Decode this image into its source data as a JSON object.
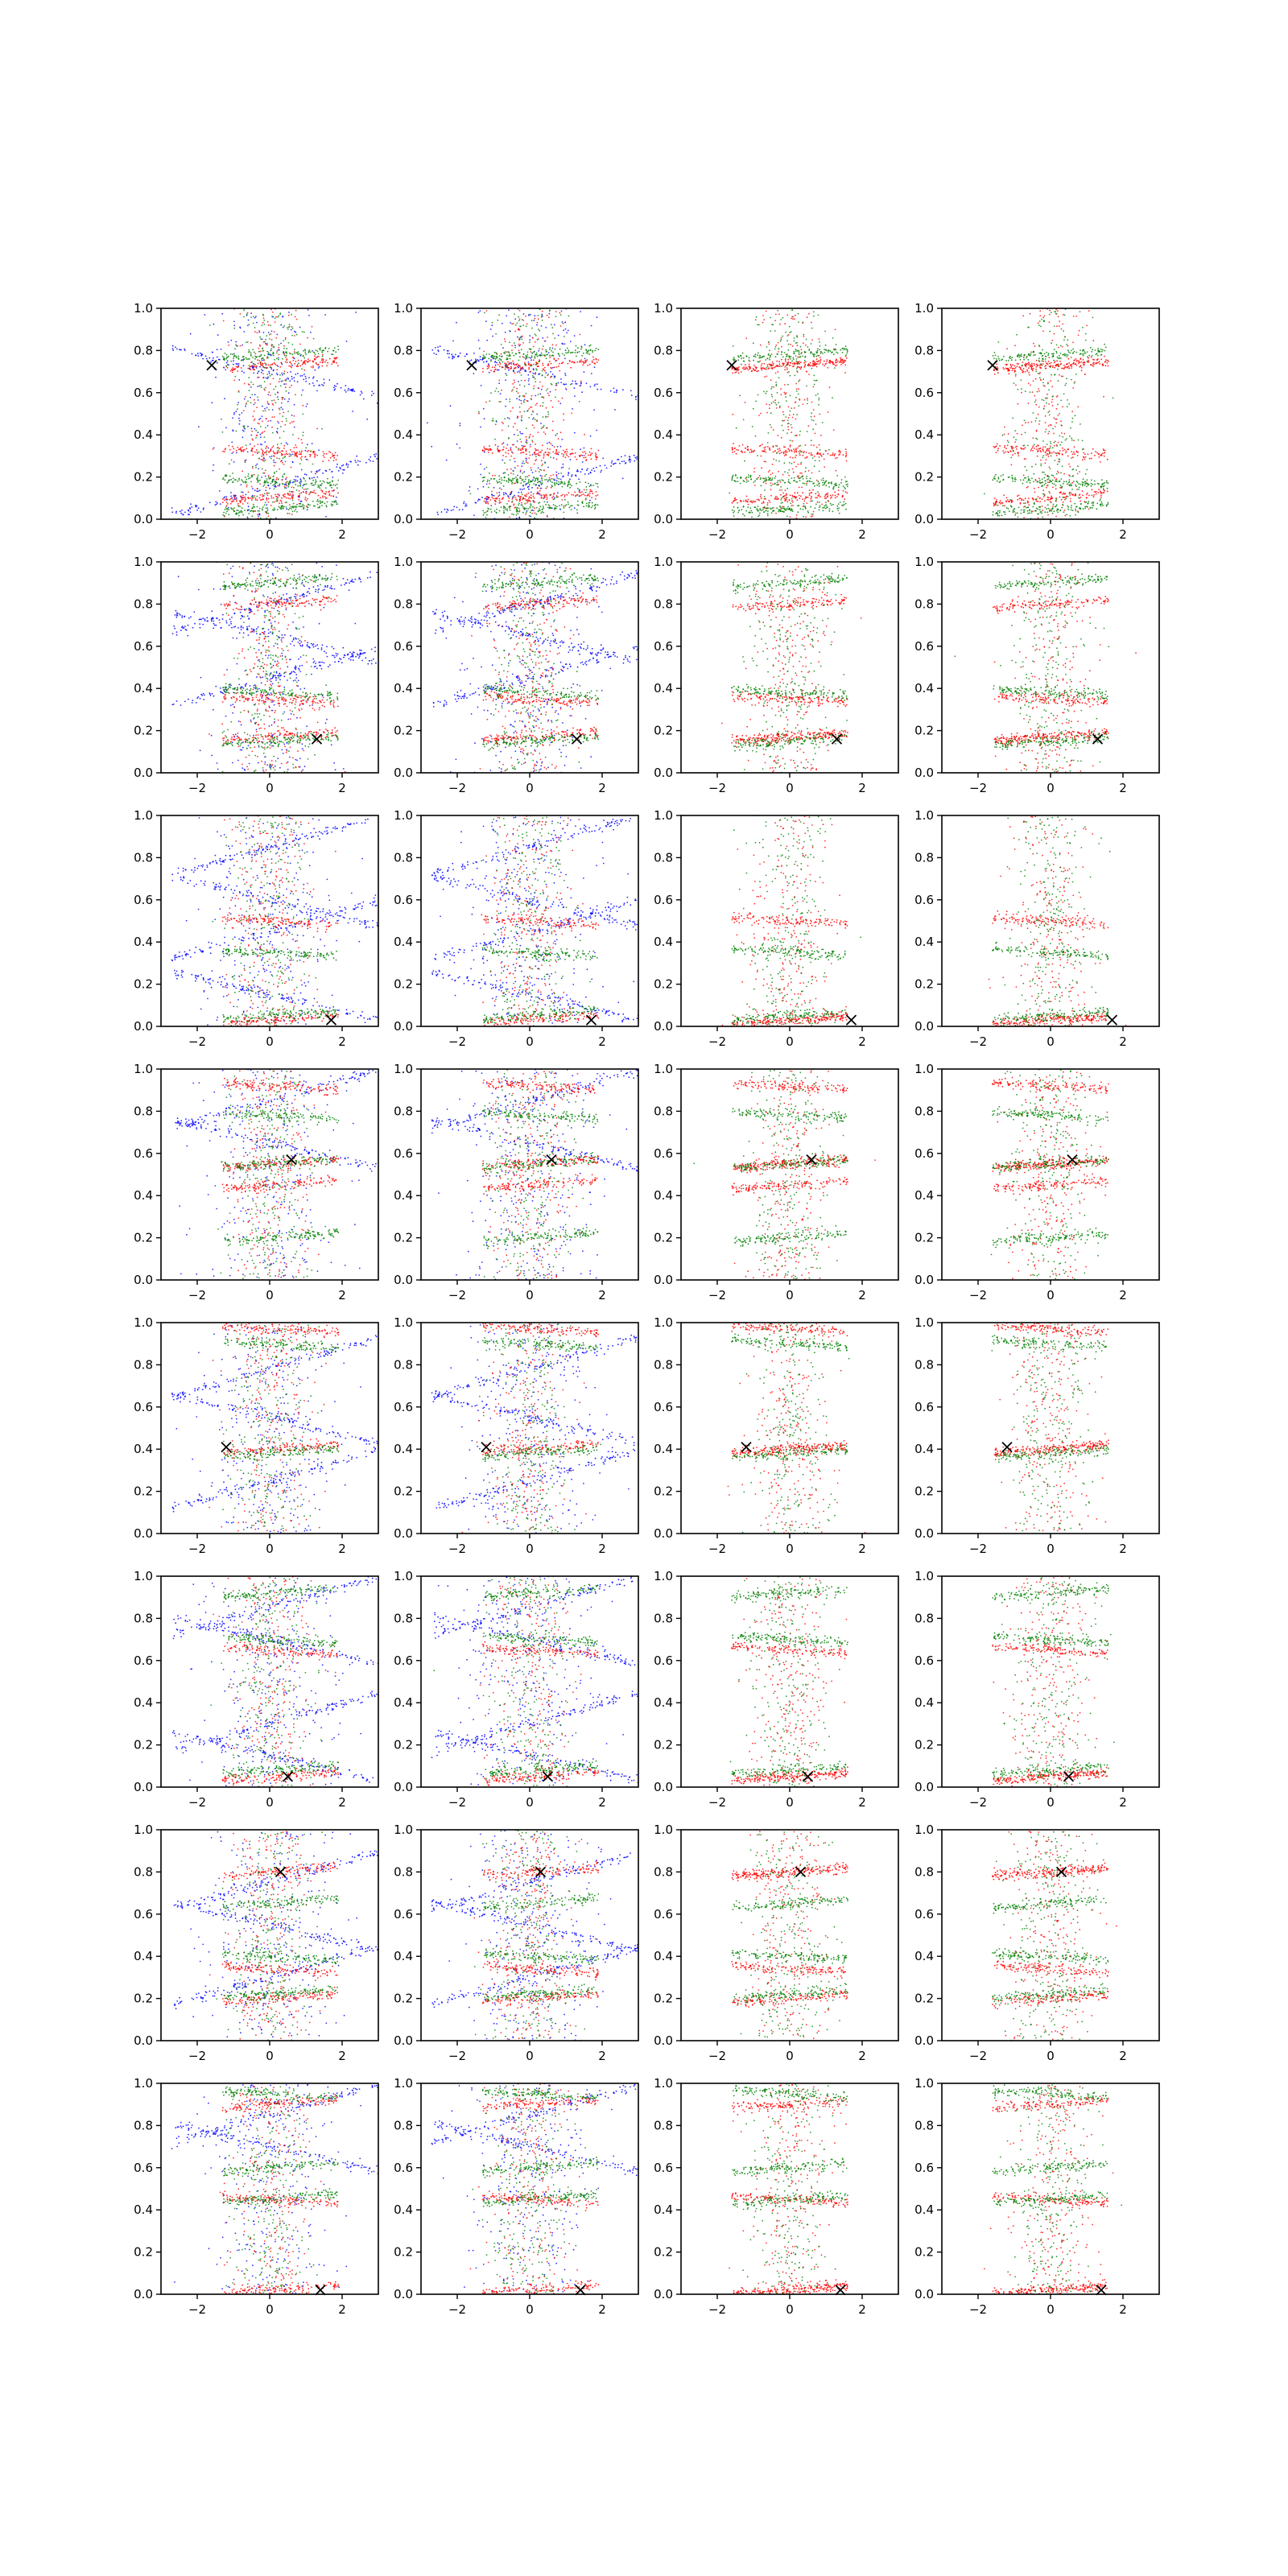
{
  "chart_data": {
    "type": "scatter",
    "grid": false,
    "layout": {
      "rows": 8,
      "cols": 4
    },
    "xlim": [
      -3,
      3
    ],
    "ylim": [
      0,
      1
    ],
    "xticks": [
      -2,
      0,
      2
    ],
    "yticks": [
      0.0,
      0.2,
      0.4,
      0.6,
      0.8,
      1.0
    ],
    "xtick_labels": [
      "−2",
      "0",
      "2"
    ],
    "ytick_labels": [
      "0.0",
      "0.2",
      "0.4",
      "0.6",
      "0.8",
      "1.0"
    ],
    "series_colors": {
      "blue": "#0000ff",
      "red": "#ff0000",
      "green": "#008000",
      "marker": "#000000"
    },
    "marker_symbol": "x",
    "rows": [
      {
        "marker": [
          -1.6,
          0.73
        ],
        "red_bands": [
          0.73,
          0.32,
          0.1
        ],
        "green_bands": [
          0.78,
          0.18,
          0.05
        ],
        "blue_bands": [
          0.15,
          0.7
        ]
      },
      {
        "marker": [
          1.3,
          0.16
        ],
        "red_bands": [
          0.17,
          0.35,
          0.8
        ],
        "green_bands": [
          0.15,
          0.38,
          0.9
        ],
        "blue_bands": [
          0.8,
          0.65,
          0.45
        ]
      },
      {
        "marker": [
          1.7,
          0.03
        ],
        "red_bands": [
          0.03,
          0.5
        ],
        "green_bands": [
          0.05,
          0.35
        ],
        "blue_bands": [
          0.85,
          0.6,
          0.45,
          0.15
        ]
      },
      {
        "marker": [
          0.6,
          0.57
        ],
        "red_bands": [
          0.55,
          0.92,
          0.45
        ],
        "green_bands": [
          0.55,
          0.78,
          0.2
        ],
        "blue_bands": [
          0.85,
          0.65
        ]
      },
      {
        "marker": [
          -1.2,
          0.41
        ],
        "red_bands": [
          0.4,
          0.97
        ],
        "green_bands": [
          0.38,
          0.9
        ],
        "blue_bands": [
          0.78,
          0.55,
          0.25
        ]
      },
      {
        "marker": [
          0.5,
          0.05
        ],
        "red_bands": [
          0.05,
          0.65
        ],
        "green_bands": [
          0.08,
          0.7,
          0.92
        ],
        "blue_bands": [
          0.85,
          0.7,
          0.3,
          0.15
        ]
      },
      {
        "marker": [
          0.3,
          0.8
        ],
        "red_bands": [
          0.8,
          0.34,
          0.2
        ],
        "green_bands": [
          0.65,
          0.4,
          0.22
        ],
        "blue_bands": [
          0.75,
          0.55,
          0.3
        ]
      },
      {
        "marker": [
          1.4,
          0.02
        ],
        "red_bands": [
          0.02,
          0.45,
          0.9
        ],
        "green_bands": [
          0.45,
          0.95,
          0.6
        ],
        "blue_bands": [
          0.85,
          0.7
        ]
      }
    ],
    "columns": [
      {
        "colors": [
          "blue",
          "red",
          "green"
        ]
      },
      {
        "colors": [
          "blue",
          "red",
          "green"
        ]
      },
      {
        "colors": [
          "red",
          "green"
        ]
      },
      {
        "colors": [
          "red",
          "green"
        ]
      }
    ]
  }
}
